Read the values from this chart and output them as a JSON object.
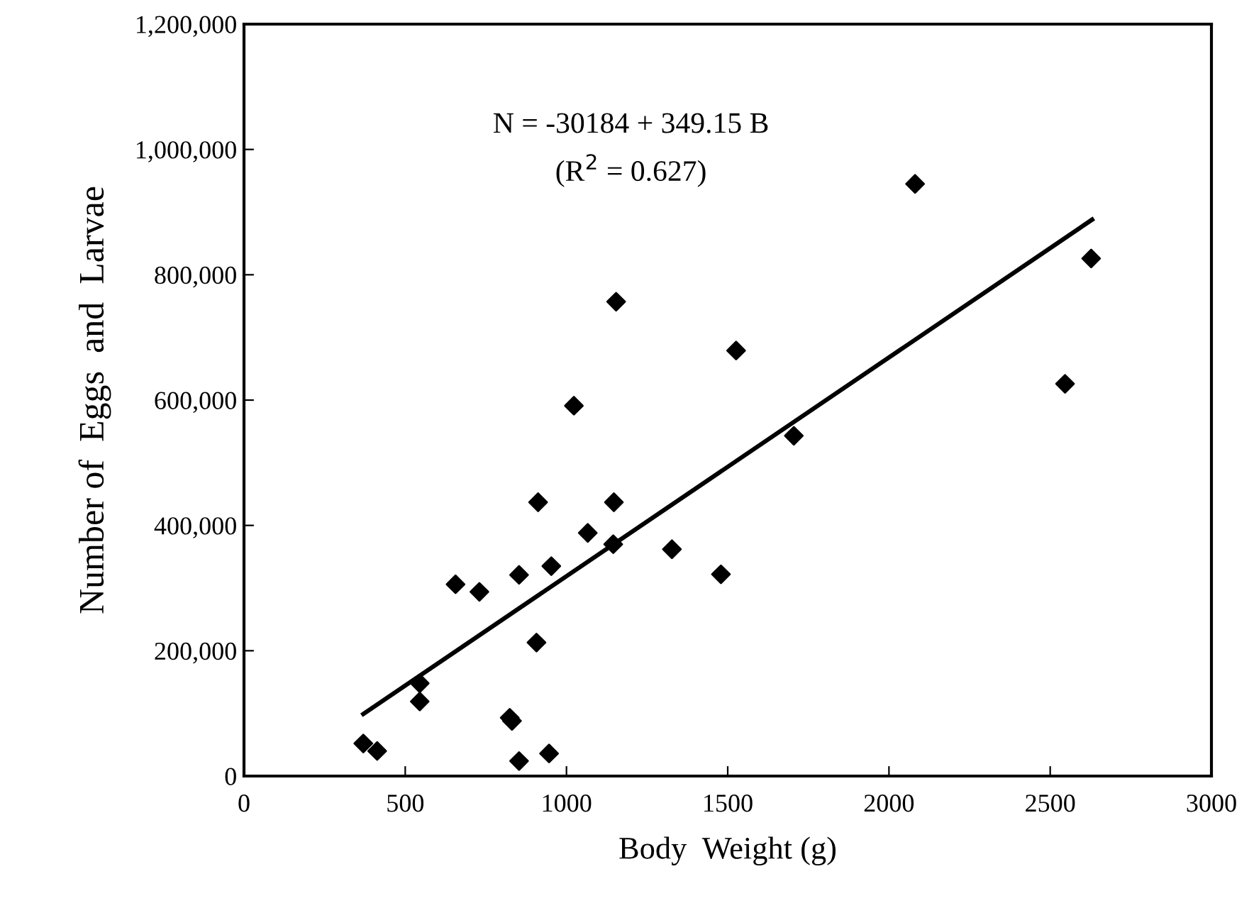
{
  "chart_data": {
    "type": "scatter",
    "xlabel": "Body  Weight (g)",
    "ylabel": "Number of  Eggs  and  Larvae",
    "annotations": [
      "N = -30184 + 349.15 B",
      "(R$^{2}$ = 0.627)"
    ],
    "series": [
      {
        "color": "#000000",
        "marker": "diamond",
        "x": [
          370,
          413,
          545,
          545,
          656,
          730,
          824,
          831,
          853,
          853,
          912,
          907,
          953,
          946,
          1023,
          1066,
          1147,
          1145,
          1154,
          1327,
          1479,
          1526,
          1705,
          2081,
          2546,
          2627
        ],
        "values": [
          52000,
          40000,
          148000,
          119000,
          306000,
          294000,
          93000,
          88000,
          321000,
          24000,
          437000,
          213000,
          335000,
          36000,
          591000,
          388000,
          437000,
          370000,
          757000,
          362000,
          322000,
          679000,
          543000,
          945000,
          626000,
          826000
        ]
      },
      {
        "type": "line",
        "color": "#000000",
        "marker": "none",
        "line_style": "solid",
        "x": [
          370,
          2630
        ],
        "values": [
          99000,
          888000
        ]
      }
    ],
    "xlim": [
      0,
      3000
    ],
    "xticks": [
      0,
      500,
      1000,
      1500,
      2000,
      2500,
      3000
    ],
    "ylim": [
      0,
      1200000
    ],
    "yticks": [
      {
        "value": 0,
        "label": "0"
      },
      {
        "value": 200000,
        "label": "200,000"
      },
      {
        "value": 400000,
        "label": "400,000"
      },
      {
        "value": 600000,
        "label": "600,000"
      },
      {
        "value": 800000,
        "label": "800,000"
      },
      {
        "value": 1000000,
        "label": "1,000,000"
      },
      {
        "value": 1200000,
        "label": "1,200,000"
      }
    ],
    "grid": false
  }
}
